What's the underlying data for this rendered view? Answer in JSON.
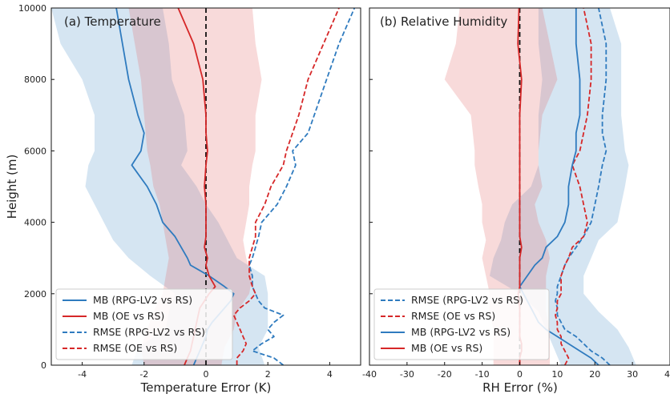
{
  "chart_data": [
    {
      "type": "line",
      "title": "(a) Temperature",
      "xlabel": "Temperature Error (K)",
      "ylabel": "Height (m)",
      "xlim": [
        -5,
        5
      ],
      "ylim": [
        0,
        10000
      ],
      "xticks": [
        -4,
        -2,
        0,
        2,
        4
      ],
      "yticks": [
        0,
        2000,
        4000,
        6000,
        8000,
        10000
      ],
      "y": [
        0,
        200,
        400,
        600,
        800,
        1000,
        1200,
        1400,
        1600,
        1800,
        2000,
        2200,
        2500,
        2800,
        3000,
        3300,
        3600,
        4000,
        4500,
        5000,
        5600,
        6000,
        6500,
        7000,
        8000,
        9000,
        10000
      ],
      "legend": {
        "location": "lower-left",
        "entries": [
          "MB (RPG-LV2 vs RS)",
          "MB (OE vs RS)",
          "RMSE (RPG-LV2 vs RS)",
          "RMSE (OE vs RS)"
        ]
      },
      "zero_line": 0,
      "series": [
        {
          "name": "MB (RPG-LV2 vs RS)",
          "color": "#2f7bbf",
          "style": "solid",
          "values": [
            -0.4,
            -0.3,
            -0.2,
            -0.1,
            0.0,
            0.05,
            0.2,
            0.4,
            0.6,
            0.8,
            0.9,
            0.6,
            0.1,
            -0.5,
            -0.6,
            -0.8,
            -1.0,
            -1.4,
            -1.6,
            -1.9,
            -2.4,
            -2.1,
            -2.0,
            -2.2,
            -2.5,
            -2.7,
            -2.9
          ]
        },
        {
          "name": "MB (OE vs RS)",
          "color": "#d62728",
          "style": "solid",
          "values": [
            -0.7,
            -0.6,
            -0.5,
            -0.45,
            -0.4,
            -0.35,
            -0.3,
            -0.25,
            -0.2,
            -0.05,
            0.1,
            0.3,
            0.1,
            0.0,
            0.05,
            -0.05,
            0.0,
            0.0,
            0.0,
            -0.05,
            0.0,
            0.05,
            0.0,
            0.0,
            -0.1,
            -0.4,
            -0.9
          ]
        },
        {
          "name": "RMSE (RPG-LV2 vs RS)",
          "color": "#2f7bbf",
          "style": "dashed",
          "values": [
            2.5,
            2.2,
            1.5,
            1.8,
            2.2,
            2.0,
            2.2,
            2.5,
            1.9,
            1.7,
            1.6,
            1.5,
            1.5,
            1.4,
            1.5,
            1.6,
            1.7,
            1.8,
            2.3,
            2.6,
            2.9,
            2.8,
            3.3,
            3.5,
            3.9,
            4.3,
            4.8
          ]
        },
        {
          "name": "RMSE (OE vs RS)",
          "color": "#d62728",
          "style": "dashed",
          "values": [
            1.0,
            1.0,
            1.2,
            1.3,
            1.2,
            1.1,
            1.0,
            0.9,
            1.1,
            1.4,
            1.6,
            1.5,
            1.4,
            1.4,
            1.4,
            1.5,
            1.6,
            1.6,
            1.9,
            2.1,
            2.5,
            2.6,
            2.8,
            3.0,
            3.3,
            3.8,
            4.3
          ]
        }
      ],
      "bands": [
        {
          "color": "#2f7bbf",
          "opacity": 0.2,
          "y": [
            0,
            500,
            1000,
            1500,
            2000,
            2500,
            3000,
            3500,
            4000,
            4500,
            5000,
            5600,
            6000,
            7000,
            8000,
            9000,
            10000
          ],
          "lower": [
            -2.4,
            -2.2,
            -1.3,
            -1.2,
            -1.0,
            -1.8,
            -2.5,
            -3.0,
            -3.3,
            -3.6,
            -3.9,
            -3.8,
            -3.6,
            -3.6,
            -4.0,
            -4.7,
            -5.0
          ],
          "upper": [
            1.9,
            1.7,
            2.0,
            2.0,
            2.0,
            1.9,
            1.0,
            0.7,
            0.4,
            0.0,
            -0.3,
            -0.8,
            -0.6,
            -0.7,
            -1.1,
            -1.2,
            -1.4
          ]
        },
        {
          "color": "#e56b6b",
          "opacity": 0.25,
          "y": [
            0,
            500,
            1000,
            1500,
            2000,
            2500,
            3000,
            3500,
            4000,
            4500,
            5000,
            5600,
            6000,
            7000,
            8000,
            9000,
            10000
          ],
          "lower": [
            -2.0,
            -2.1,
            -1.9,
            -1.7,
            -1.4,
            -1.3,
            -1.2,
            -1.3,
            -1.4,
            -1.5,
            -1.7,
            -1.8,
            -1.9,
            -2.0,
            -2.1,
            -2.3,
            -2.5
          ],
          "upper": [
            0.5,
            0.6,
            0.9,
            1.0,
            1.4,
            1.5,
            1.3,
            1.2,
            1.3,
            1.4,
            1.4,
            1.5,
            1.6,
            1.6,
            1.8,
            1.6,
            1.5
          ]
        }
      ]
    },
    {
      "type": "line",
      "title": "(b) Relative Humidity",
      "xlabel": "RH Error (%)",
      "ylabel": "",
      "xlim": [
        -40,
        40
      ],
      "ylim": [
        0,
        10000
      ],
      "xticks": [
        -40,
        -30,
        -20,
        -10,
        0,
        10,
        20,
        30,
        40
      ],
      "yticks": [
        0,
        2000,
        4000,
        6000,
        8000,
        10000
      ],
      "y": [
        0,
        200,
        400,
        600,
        800,
        1000,
        1200,
        1400,
        1600,
        1800,
        2000,
        2200,
        2500,
        2800,
        3000,
        3300,
        3600,
        4000,
        4500,
        5000,
        5600,
        6000,
        6500,
        7000,
        8000,
        9000,
        10000
      ],
      "legend": {
        "location": "lower-left",
        "entries": [
          "RMSE (RPG-LV2 vs RS)",
          "RMSE (OE vs RS)",
          "MB (RPG-LV2 vs RS)",
          "MB (OE vs RS)"
        ]
      },
      "zero_line": 0,
      "series": [
        {
          "name": "RMSE (RPG-LV2 vs RS)",
          "color": "#2f7bbf",
          "style": "dashed",
          "values": [
            24,
            22,
            19,
            17,
            15,
            12,
            11,
            10,
            10,
            9.5,
            10,
            10,
            11,
            12,
            13,
            15,
            17,
            19,
            20,
            21,
            22,
            23,
            22,
            22,
            23,
            23,
            21
          ]
        },
        {
          "name": "RMSE (OE vs RS)",
          "color": "#d62728",
          "style": "dashed",
          "values": [
            12,
            13,
            12,
            11,
            11,
            10,
            10,
            9.5,
            10,
            10,
            11,
            11,
            11,
            12,
            13,
            14,
            17,
            18,
            17,
            16,
            14,
            16,
            17,
            18,
            19,
            19,
            17
          ]
        },
        {
          "name": "MB (RPG-LV2 vs RS)",
          "color": "#2f7bbf",
          "style": "solid",
          "values": [
            21,
            19,
            16,
            13,
            10,
            7,
            5,
            4,
            3,
            2,
            1,
            0,
            2,
            4,
            6,
            7,
            10,
            12,
            13,
            13,
            14,
            15,
            15,
            16,
            16,
            15,
            15
          ]
        },
        {
          "name": "MB (OE vs RS)",
          "color": "#d62728",
          "style": "solid",
          "values": [
            0,
            0,
            0.5,
            0.5,
            0,
            0,
            0,
            0,
            0,
            -0.3,
            -0.4,
            0,
            0,
            0,
            0,
            0.5,
            0,
            0,
            0,
            0,
            0,
            0,
            0,
            0,
            0.5,
            -0.5,
            -0.2
          ]
        }
      ],
      "bands": [
        {
          "color": "#2f7bbf",
          "opacity": 0.2,
          "y": [
            0,
            500,
            1000,
            1500,
            2000,
            2500,
            3000,
            3500,
            4000,
            4500,
            5000,
            5600,
            6000,
            7000,
            8000,
            9000,
            10000
          ],
          "lower": [
            11,
            9,
            7,
            5,
            0,
            -8,
            -7,
            -5,
            -4,
            -2,
            3,
            5,
            5,
            5,
            6,
            5,
            5
          ],
          "upper": [
            31,
            29,
            26,
            21,
            17,
            17,
            19,
            21,
            26,
            27,
            28,
            29,
            28,
            27,
            27,
            27,
            24
          ]
        },
        {
          "color": "#e56b6b",
          "opacity": 0.25,
          "y": [
            0,
            500,
            1000,
            1500,
            2000,
            2500,
            3000,
            3500,
            4000,
            4500,
            5000,
            5600,
            6000,
            7000,
            8000,
            9000,
            10000
          ],
          "lower": [
            -7,
            -7,
            -7,
            -8,
            -8,
            -9,
            -10,
            -9,
            -10,
            -10,
            -11,
            -12,
            -12,
            -13,
            -20,
            -17,
            -16
          ],
          "upper": [
            8,
            8,
            8,
            7,
            7,
            7,
            8,
            7,
            5,
            4,
            6,
            5,
            5,
            6,
            10,
            8,
            6
          ]
        }
      ]
    }
  ]
}
